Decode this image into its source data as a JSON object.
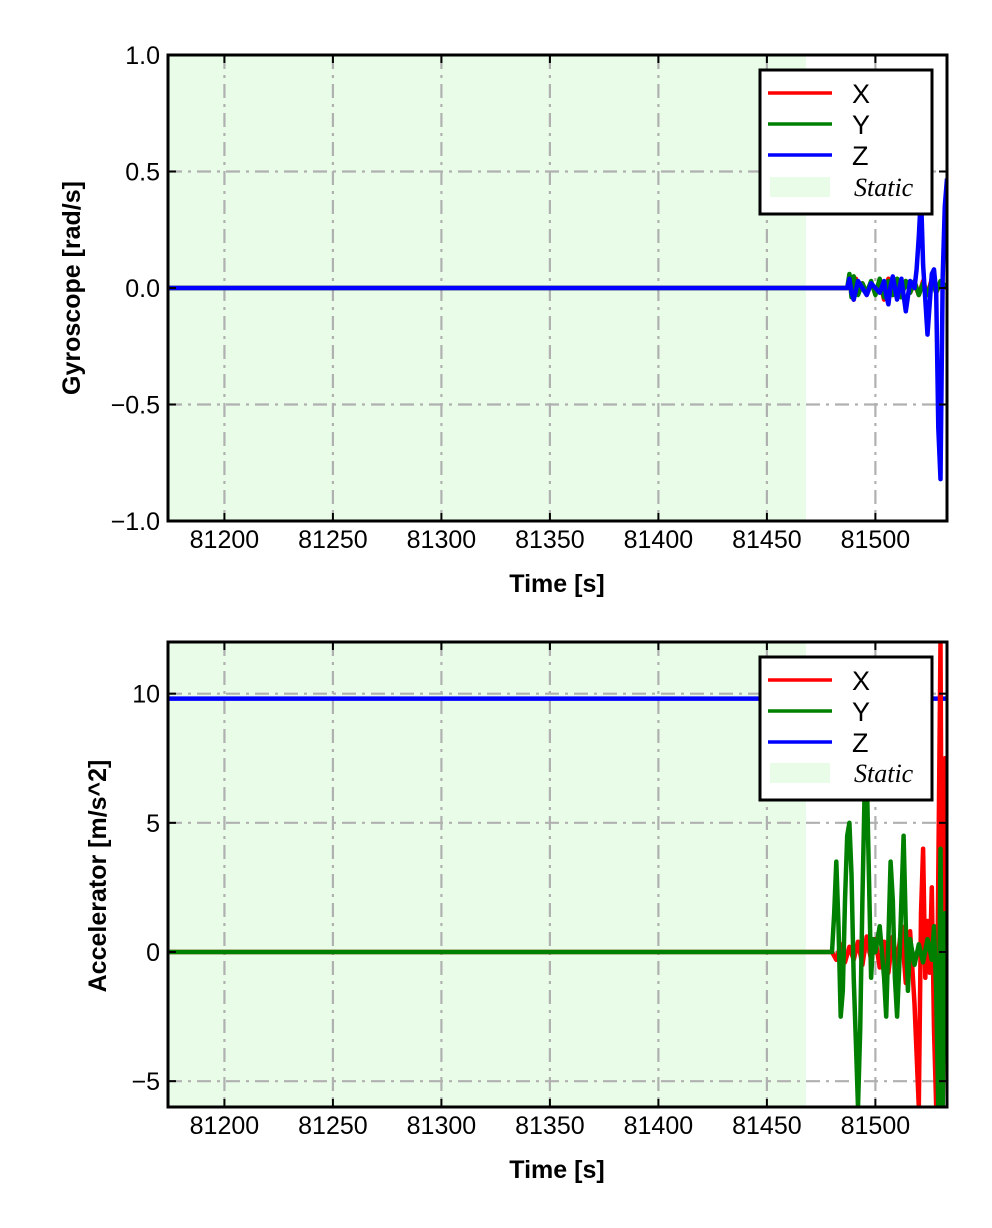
{
  "colors": {
    "X": "#ff0000",
    "Y": "#008000",
    "Z": "#0000ff",
    "static_fill": "#e8fce8",
    "grid": "#b0b0b0"
  },
  "chart_data": [
    {
      "type": "line",
      "xlabel": "Time [s]",
      "ylabel": "Gyroscope [rad/s]",
      "xlim": [
        81174,
        81533
      ],
      "ylim": [
        -1.0,
        1.0
      ],
      "xticks": [
        81200,
        81250,
        81300,
        81350,
        81400,
        81450,
        81500
      ],
      "xtick_labels": [
        "81200",
        "81250",
        "81300",
        "81350",
        "81400",
        "81450",
        "81500"
      ],
      "yticks": [
        -1.0,
        -0.5,
        0.0,
        0.5,
        1.0
      ],
      "ytick_labels": [
        "−1.0",
        "−0.5",
        "0.0",
        "0.5",
        "1.0"
      ],
      "grid": true,
      "legend": "top-right",
      "static_region": [
        81174,
        81468
      ],
      "legend_static_label": "Static",
      "series": [
        {
          "name": "X",
          "x": [
            81174,
            81488,
            81489,
            81490,
            81491,
            81492,
            81494,
            81496,
            81498,
            81500,
            81502,
            81504,
            81506,
            81508,
            81510,
            81512,
            81514,
            81516,
            81518,
            81520,
            81522,
            81524,
            81526,
            81528,
            81530,
            81533
          ],
          "y": [
            0.0,
            0.0,
            0.03,
            -0.05,
            0.04,
            -0.02,
            0.02,
            -0.03,
            0.02,
            -0.02,
            0.03,
            -0.05,
            0.04,
            -0.03,
            0.02,
            -0.04,
            0.03,
            -0.02,
            0.02,
            -0.03,
            0.03,
            -0.03,
            0.04,
            -0.02,
            0.02,
            0.0
          ]
        },
        {
          "name": "Y",
          "x": [
            81174,
            81487,
            81488,
            81489,
            81490,
            81492,
            81494,
            81496,
            81498,
            81500,
            81502,
            81504,
            81506,
            81508,
            81510,
            81512,
            81514,
            81516,
            81518,
            81520,
            81522,
            81524,
            81526,
            81528,
            81530,
            81533
          ],
          "y": [
            0.0,
            0.0,
            0.06,
            -0.04,
            0.05,
            -0.03,
            0.02,
            -0.02,
            0.03,
            -0.03,
            0.04,
            -0.04,
            0.03,
            -0.03,
            0.04,
            -0.04,
            0.03,
            -0.02,
            0.03,
            -0.03,
            0.02,
            -0.03,
            0.03,
            -0.02,
            0.03,
            0.0
          ]
        },
        {
          "name": "Z",
          "x": [
            81174,
            81487,
            81488,
            81489,
            81490,
            81491,
            81492,
            81494,
            81496,
            81498,
            81500,
            81502,
            81504,
            81505,
            81506,
            81507,
            81508,
            81510,
            81512,
            81514,
            81516,
            81518,
            81519,
            81520,
            81521,
            81522,
            81523,
            81524,
            81526,
            81527,
            81528,
            81529,
            81530,
            81531,
            81532,
            81533
          ],
          "y": [
            0.0,
            0.0,
            0.04,
            -0.02,
            -0.05,
            -0.01,
            0.03,
            0.0,
            -0.03,
            0.02,
            0.0,
            -0.02,
            0.03,
            -0.03,
            -0.07,
            0.01,
            0.05,
            -0.05,
            0.04,
            -0.1,
            0.03,
            0.0,
            0.08,
            0.22,
            0.4,
            0.1,
            -0.05,
            -0.2,
            0.06,
            0.08,
            -0.02,
            -0.6,
            -0.82,
            0.05,
            0.35,
            0.47
          ]
        }
      ]
    },
    {
      "type": "line",
      "xlabel": "Time [s]",
      "ylabel": "Accelerator [m/s^2]",
      "xlim": [
        81174,
        81533
      ],
      "ylim": [
        -6.0,
        12.0
      ],
      "xticks": [
        81200,
        81250,
        81300,
        81350,
        81400,
        81450,
        81500
      ],
      "xtick_labels": [
        "81200",
        "81250",
        "81300",
        "81350",
        "81400",
        "81450",
        "81500"
      ],
      "yticks": [
        -5,
        0,
        5,
        10
      ],
      "ytick_labels": [
        "−5",
        "0",
        "5",
        "10"
      ],
      "grid": true,
      "legend": "top-right",
      "static_region": [
        81174,
        81468
      ],
      "legend_static_label": "Static",
      "series": [
        {
          "name": "X",
          "x": [
            81174,
            81480,
            81482,
            81484,
            81486,
            81488,
            81490,
            81492,
            81494,
            81496,
            81498,
            81500,
            81502,
            81504,
            81506,
            81508,
            81510,
            81512,
            81514,
            81516,
            81518,
            81520,
            81521,
            81522,
            81523,
            81524,
            81525,
            81526,
            81527,
            81528,
            81529,
            81530,
            81531,
            81532,
            81533
          ],
          "y": [
            0.0,
            0.0,
            -0.3,
            0.3,
            -0.4,
            0.2,
            -0.3,
            0.4,
            -0.5,
            0.6,
            -0.3,
            0.5,
            -0.6,
            0.4,
            -0.8,
            0.6,
            -0.5,
            1.0,
            -1.2,
            0.8,
            -2.0,
            -6.0,
            1.5,
            4.0,
            -1.0,
            1.2,
            -0.8,
            2.5,
            -3.0,
            -6.0,
            3.0,
            12.0,
            -6.0,
            7.5,
            0.0
          ]
        },
        {
          "name": "Y",
          "x": [
            81174,
            81480,
            81481,
            81482,
            81483,
            81484,
            81485,
            81486,
            81487,
            81488,
            81489,
            81490,
            81491,
            81492,
            81493,
            81494,
            81495,
            81496,
            81497,
            81498,
            81499,
            81500,
            81502,
            81504,
            81505,
            81506,
            81507,
            81508,
            81509,
            81510,
            81511,
            81512,
            81513,
            81514,
            81515,
            81516,
            81518,
            81520,
            81522,
            81524,
            81526,
            81527,
            81528,
            81529,
            81530,
            81531,
            81532,
            81533
          ],
          "y": [
            0.0,
            0.0,
            1.5,
            3.5,
            1.0,
            -2.5,
            -1.5,
            2.0,
            4.5,
            5.0,
            3.0,
            -1.0,
            -3.5,
            -6.0,
            -3.0,
            2.0,
            6.0,
            7.0,
            3.0,
            -1.0,
            0.5,
            0.0,
            1.0,
            -1.0,
            -2.5,
            0.5,
            3.5,
            2.0,
            -1.0,
            -2.5,
            -0.5,
            2.0,
            4.5,
            1.0,
            -1.5,
            0.5,
            -0.5,
            0.3,
            -0.4,
            0.5,
            -0.3,
            1.0,
            -1.5,
            -6.0,
            4.0,
            -6.0,
            1.5,
            0.0
          ]
        },
        {
          "name": "Z",
          "x": [
            81174,
            81533
          ],
          "y": [
            9.81,
            9.81
          ]
        }
      ]
    }
  ]
}
